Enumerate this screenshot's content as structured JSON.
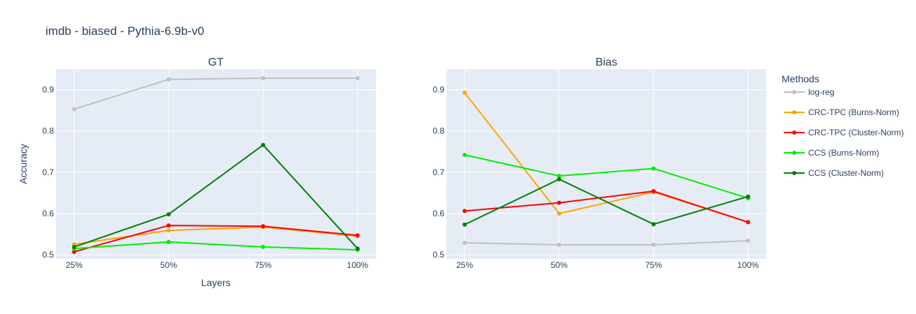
{
  "title": "imdb - biased - Pythia-6.9b-v0",
  "legend": {
    "title": "Methods"
  },
  "colors": {
    "log-reg": "#c0c0c0",
    "CRC-TPC (Burns-Norm)": "#ffa500",
    "CRC-TPC (Cluster-Norm)": "#ff0000",
    "CCS (Burns-Norm)": "#00ee00",
    "CCS (Cluster-Norm)": "#008000",
    "plot_bg": "#e5ecf6",
    "grid": "#ffffff"
  },
  "chart_data": [
    {
      "type": "line",
      "title": "GT",
      "xlabel": "Layers",
      "ylabel": "Accuracy",
      "categories": [
        "25%",
        "50%",
        "75%",
        "100%"
      ],
      "ylim": [
        0.49,
        0.95
      ],
      "yticks": [
        0.5,
        0.6,
        0.7,
        0.8,
        0.9
      ],
      "yticklabels": [
        "0.5",
        "0.6",
        "0.7",
        "0.8",
        "0.9"
      ],
      "series": [
        {
          "name": "log-reg",
          "values": [
            0.853,
            0.925,
            0.928,
            0.928
          ]
        },
        {
          "name": "CRC-TPC (Burns-Norm)",
          "values": [
            0.525,
            0.559,
            0.567,
            0.545
          ]
        },
        {
          "name": "CRC-TPC (Cluster-Norm)",
          "values": [
            0.507,
            0.571,
            0.569,
            0.547
          ]
        },
        {
          "name": "CCS (Burns-Norm)",
          "values": [
            0.515,
            0.531,
            0.519,
            0.512
          ]
        },
        {
          "name": "CCS (Cluster-Norm)",
          "values": [
            0.519,
            0.598,
            0.766,
            0.515
          ]
        }
      ]
    },
    {
      "type": "line",
      "title": "Bias",
      "xlabel": "",
      "ylabel": "",
      "categories": [
        "25%",
        "50%",
        "75%",
        "100%"
      ],
      "ylim": [
        0.49,
        0.95
      ],
      "yticks": [
        0.5,
        0.6,
        0.7,
        0.8,
        0.9
      ],
      "yticklabels": [
        "0.5",
        "0.6",
        "0.7",
        "0.8",
        "0.9"
      ],
      "series": [
        {
          "name": "log-reg",
          "values": [
            0.529,
            0.524,
            0.524,
            0.534
          ]
        },
        {
          "name": "CRC-TPC (Burns-Norm)",
          "values": [
            0.893,
            0.6,
            0.652,
            0.579
          ]
        },
        {
          "name": "CRC-TPC (Cluster-Norm)",
          "values": [
            0.606,
            0.626,
            0.654,
            0.579
          ]
        },
        {
          "name": "CCS (Burns-Norm)",
          "values": [
            0.742,
            0.691,
            0.709,
            0.637
          ]
        },
        {
          "name": "CCS (Cluster-Norm)",
          "values": [
            0.573,
            0.683,
            0.574,
            0.641
          ]
        }
      ]
    }
  ]
}
